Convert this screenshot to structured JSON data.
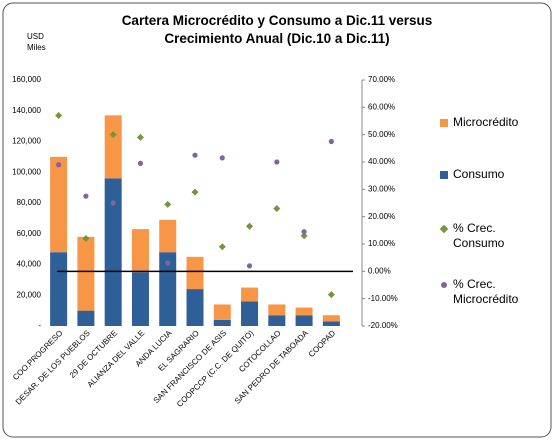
{
  "chart_data": {
    "type": "bar",
    "title": "Cartera Microcrédito y Consumo a Dic.11 versus Crecimiento Anual (Dic.10 a Dic.11)",
    "y_axis_label": "USD Miles",
    "categories": [
      "COO.PROGRESO",
      "DESAR. DE LOS PUEBLOS",
      "29 DE OCTUBRE",
      "ALIANZA DEL VALLE",
      "ANDA LUCIA",
      "EL SAGRARIO",
      "SAN FRANCISCO DE ASIS",
      "COOPCCP (C.C. DE QUITO)",
      "COTOCOLLAO",
      "SAN PEDRO DE TABOADA",
      "COOPAD"
    ],
    "stacked": true,
    "series": [
      {
        "name": "Consumo",
        "color": "#2e5f97",
        "kind": "bar",
        "values": [
          48000,
          10000,
          96000,
          35000,
          48000,
          24000,
          4000,
          16000,
          7000,
          7000,
          3000
        ]
      },
      {
        "name": "Microcrédito",
        "color": "#f79646",
        "kind": "bar",
        "values": [
          62000,
          48000,
          41000,
          28000,
          21000,
          21000,
          10000,
          9000,
          7000,
          5000,
          4000
        ]
      },
      {
        "name": "% Crec. Consumo",
        "color": "#77933c",
        "kind": "scatter",
        "marker": "diamond",
        "axis": "y2",
        "values": [
          57,
          12,
          50,
          49,
          24.5,
          29,
          9,
          16.5,
          23,
          13,
          -8.5
        ]
      },
      {
        "name": "% Crec. Microcrédito",
        "color": "#8064a2",
        "kind": "scatter",
        "marker": "circle",
        "axis": "y2",
        "values": [
          39,
          27.5,
          25,
          39.5,
          3,
          42.5,
          41.5,
          2,
          40,
          14.5,
          47.5
        ]
      }
    ],
    "legend_order": [
      1,
      0,
      2,
      3
    ],
    "ylim": [
      0,
      160000
    ],
    "yticks": [
      {
        "value": 0,
        "label": "-"
      },
      {
        "value": 20000,
        "label": "20,000"
      },
      {
        "value": 40000,
        "label": "40,000"
      },
      {
        "value": 60000,
        "label": "60,000"
      },
      {
        "value": 80000,
        "label": "80,000"
      },
      {
        "value": 100000,
        "label": "100,000"
      },
      {
        "value": 120000,
        "label": "120,000"
      },
      {
        "value": 140000,
        "label": "140,000"
      },
      {
        "value": 160000,
        "label": "160,000"
      }
    ],
    "y2lim": [
      -20,
      70
    ],
    "y2ticks": [
      {
        "value": -20,
        "label": "-20.00%"
      },
      {
        "value": -10,
        "label": "-10.00%"
      },
      {
        "value": 0,
        "label": "0.00%"
      },
      {
        "value": 10,
        "label": "10.00%"
      },
      {
        "value": 20,
        "label": "20.00%"
      },
      {
        "value": 30,
        "label": "30.00%"
      },
      {
        "value": 40,
        "label": "40.00%"
      },
      {
        "value": 50,
        "label": "50.00%"
      },
      {
        "value": 60,
        "label": "60.00%"
      },
      {
        "value": 70,
        "label": "70.00%"
      }
    ],
    "grid": false
  }
}
